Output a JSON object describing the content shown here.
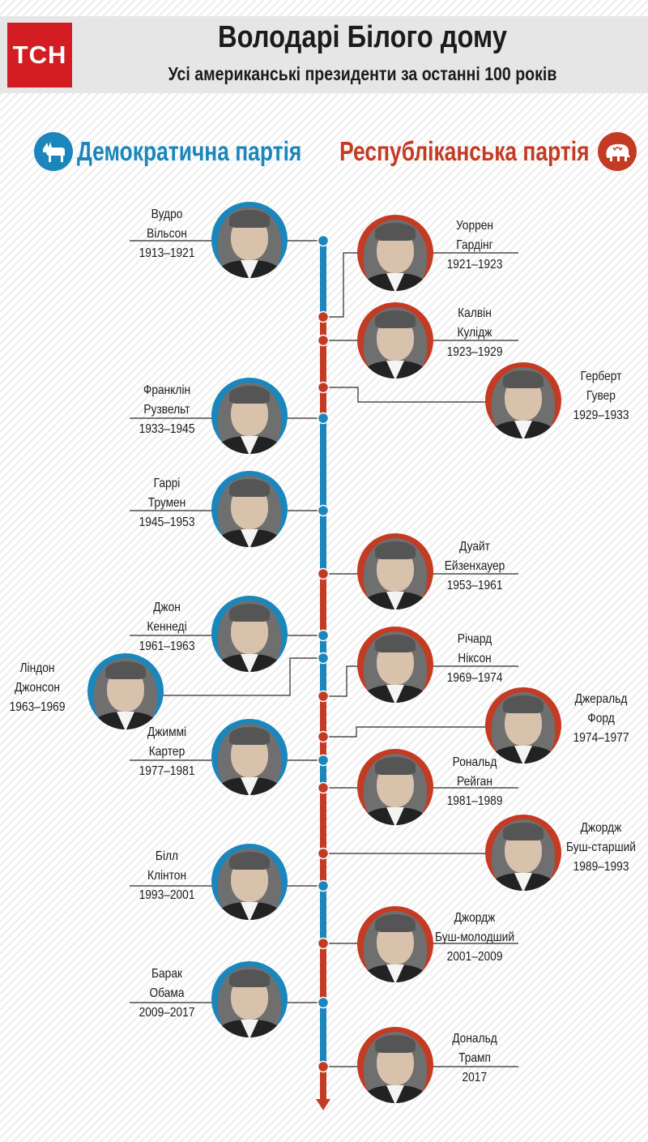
{
  "header": {
    "logo_text": "ТСН",
    "title": "Володарі Білого дому",
    "subtitle": "Усі американські президенти за останні 100 років"
  },
  "parties": {
    "democratic": {
      "label": "Демократична партія",
      "color": "#1a86bb",
      "icon": "donkey-icon"
    },
    "republican": {
      "label": "Республіканська партія",
      "color": "#c43b24",
      "icon": "elephant-icon"
    }
  },
  "presidents": [
    {
      "name1": "Вудро",
      "name2": "Вільсон",
      "years": "1913–1921",
      "party": "dem"
    },
    {
      "name1": "Уоррен",
      "name2": "Гардінг",
      "years": "1921–1923",
      "party": "rep"
    },
    {
      "name1": "Калвін",
      "name2": "Кулідж",
      "years": "1923–1929",
      "party": "rep"
    },
    {
      "name1": "Герберт",
      "name2": "Гувер",
      "years": "1929–1933",
      "party": "rep"
    },
    {
      "name1": "Франклін",
      "name2": "Рузвельт",
      "years": "1933–1945",
      "party": "dem"
    },
    {
      "name1": "Гаррі",
      "name2": "Трумен",
      "years": "1945–1953",
      "party": "dem"
    },
    {
      "name1": "Дуайт",
      "name2": "Ейзенхауер",
      "years": "1953–1961",
      "party": "rep"
    },
    {
      "name1": "Джон",
      "name2": "Кеннеді",
      "years": "1961–1963",
      "party": "dem"
    },
    {
      "name1": "Ліндон",
      "name2": "Джонсон",
      "years": "1963–1969",
      "party": "dem"
    },
    {
      "name1": "Річард",
      "name2": "Ніксон",
      "years": "1969–1974",
      "party": "rep"
    },
    {
      "name1": "Джеральд",
      "name2": "Форд",
      "years": "1974–1977",
      "party": "rep"
    },
    {
      "name1": "Джиммі",
      "name2": "Картер",
      "years": "1977–1981",
      "party": "dem"
    },
    {
      "name1": "Рональд",
      "name2": "Рейган",
      "years": "1981–1989",
      "party": "rep"
    },
    {
      "name1": "Джордж",
      "name2": "Буш-старший",
      "years": "1989–1993",
      "party": "rep"
    },
    {
      "name1": "Білл",
      "name2": "Клінтон",
      "years": "1993–2001",
      "party": "dem"
    },
    {
      "name1": "Джордж",
      "name2": "Буш-молодший",
      "years": "2001–2009",
      "party": "rep"
    },
    {
      "name1": "Барак",
      "name2": "Обама",
      "years": "2009–2017",
      "party": "dem"
    },
    {
      "name1": "Дональд",
      "name2": "Трамп",
      "years": "2017",
      "party": "rep"
    }
  ]
}
